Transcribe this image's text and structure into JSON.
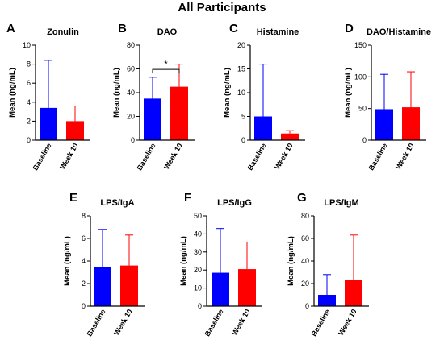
{
  "figure_title": "All Participants",
  "colors": {
    "baseline": "#0000ff",
    "week10": "#ff0000",
    "axis": "#000000"
  },
  "chart_data": [
    {
      "id": "A",
      "panel_letter": "A",
      "type": "bar",
      "title": "Zonulin",
      "categories": [
        "Baseline",
        "Week 10"
      ],
      "values": [
        3.4,
        2.0
      ],
      "errors": [
        5.0,
        1.6
      ],
      "ylabel": "Mean (ng/mL)",
      "ylim": [
        0,
        10
      ],
      "yticks": [
        0,
        2,
        4,
        6,
        8,
        10
      ],
      "grid": false
    },
    {
      "id": "B",
      "panel_letter": "B",
      "type": "bar",
      "title": "DAO",
      "categories": [
        "Baseline",
        "Week 10"
      ],
      "values": [
        35,
        45
      ],
      "errors": [
        18,
        19
      ],
      "ylabel": "Mean (ng/mL)",
      "ylim": [
        0,
        80
      ],
      "yticks": [
        0,
        20,
        40,
        60,
        80
      ],
      "grid": false,
      "significance": "*"
    },
    {
      "id": "C",
      "panel_letter": "C",
      "type": "bar",
      "title": "Histamine",
      "categories": [
        "Baseline",
        "Week 10"
      ],
      "values": [
        5.0,
        1.4
      ],
      "errors": [
        11.0,
        0.6
      ],
      "ylabel": "Mean (ng/mL)",
      "ylim": [
        0,
        20
      ],
      "yticks": [
        0,
        5,
        10,
        15,
        20
      ],
      "grid": false
    },
    {
      "id": "D",
      "panel_letter": "D",
      "type": "bar",
      "title": "DAO/Histamine",
      "categories": [
        "Baseline",
        "Week 10"
      ],
      "values": [
        49,
        52
      ],
      "errors": [
        55,
        56
      ],
      "ylabel": "Mean (ng/mL)",
      "ylim": [
        0,
        150
      ],
      "yticks": [
        0,
        50,
        100,
        150
      ],
      "grid": false
    },
    {
      "id": "E",
      "panel_letter": "E",
      "type": "bar",
      "title": "LPS/IgA",
      "categories": [
        "Baseline",
        "Week 10"
      ],
      "values": [
        3.5,
        3.6
      ],
      "errors": [
        3.3,
        2.7
      ],
      "ylabel": "Mean (ng/mL)",
      "ylim": [
        0,
        8
      ],
      "yticks": [
        0,
        2,
        4,
        6,
        8
      ],
      "grid": false
    },
    {
      "id": "F",
      "panel_letter": "F",
      "type": "bar",
      "title": "LPS/IgG",
      "categories": [
        "Baseline",
        "Week 10"
      ],
      "values": [
        18.5,
        20.5
      ],
      "errors": [
        24.5,
        15.0
      ],
      "ylabel": "Mean (ng/mL)",
      "ylim": [
        0,
        50
      ],
      "yticks": [
        0,
        10,
        20,
        30,
        40,
        50
      ],
      "grid": false
    },
    {
      "id": "G",
      "panel_letter": "G",
      "type": "bar",
      "title": "LPS/IgM",
      "categories": [
        "Baseline",
        "Week 10"
      ],
      "values": [
        10,
        23
      ],
      "errors": [
        18,
        40
      ],
      "ylabel": "Mean (ng/mL)",
      "ylim": [
        0,
        80
      ],
      "yticks": [
        0,
        20,
        40,
        60,
        80
      ],
      "grid": false
    }
  ]
}
